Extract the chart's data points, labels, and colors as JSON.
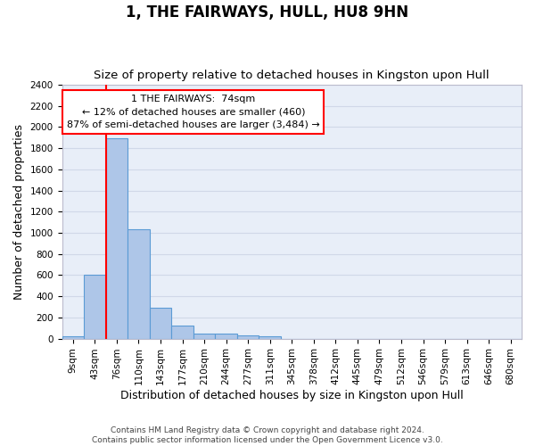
{
  "title": "1, THE FAIRWAYS, HULL, HU8 9HN",
  "subtitle": "Size of property relative to detached houses in Kingston upon Hull",
  "xlabel": "Distribution of detached houses by size in Kingston upon Hull",
  "ylabel": "Number of detached properties",
  "footer_line1": "Contains HM Land Registry data © Crown copyright and database right 2024.",
  "footer_line2": "Contains public sector information licensed under the Open Government Licence v3.0.",
  "bar_labels": [
    "9sqm",
    "43sqm",
    "76sqm",
    "110sqm",
    "143sqm",
    "177sqm",
    "210sqm",
    "244sqm",
    "277sqm",
    "311sqm",
    "345sqm",
    "378sqm",
    "412sqm",
    "445sqm",
    "479sqm",
    "512sqm",
    "546sqm",
    "579sqm",
    "613sqm",
    "646sqm",
    "680sqm"
  ],
  "bar_values": [
    20,
    600,
    1890,
    1035,
    290,
    120,
    50,
    45,
    30,
    20,
    0,
    0,
    0,
    0,
    0,
    0,
    0,
    0,
    0,
    0,
    0
  ],
  "bar_color": "#aec6e8",
  "bar_edge_color": "#5b9bd5",
  "property_line_x": 1.5,
  "annotation_line1": "1 THE FAIRWAYS:  74sqm",
  "annotation_line2": "← 12% of detached houses are smaller (460)",
  "annotation_line3": "87% of semi-detached houses are larger (3,484) →",
  "annotation_box_facecolor": "white",
  "annotation_box_edgecolor": "red",
  "vline_color": "red",
  "ylim": [
    0,
    2400
  ],
  "yticks": [
    0,
    200,
    400,
    600,
    800,
    1000,
    1200,
    1400,
    1600,
    1800,
    2000,
    2200,
    2400
  ],
  "grid_color": "#d0d8e8",
  "bg_color": "#e8eef8",
  "title_fontsize": 12,
  "subtitle_fontsize": 9.5,
  "ylabel_fontsize": 9,
  "xlabel_fontsize": 9,
  "tick_fontsize": 7.5,
  "annotation_fontsize": 8,
  "footer_fontsize": 6.5
}
